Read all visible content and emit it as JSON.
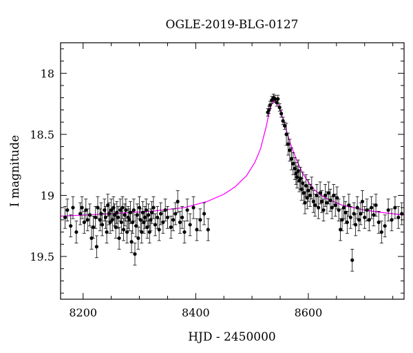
{
  "chart_data": {
    "type": "scatter",
    "title": "OGLE-2019-BLG-0127",
    "xlabel": "HJD - 2450000",
    "ylabel": "I magnitude",
    "xlim": [
      8160,
      8770
    ],
    "ylim": [
      19.85,
      17.75
    ],
    "y_inverted": true,
    "grid": false,
    "legend": "none",
    "x_ticks": [
      8200,
      8400,
      8600
    ],
    "y_ticks": [
      18,
      18.5,
      19,
      19.5
    ],
    "x_tick_labels": [
      "8200",
      "8400",
      "8600"
    ],
    "y_tick_labels": [
      "18",
      "18.5",
      "19",
      "19.5"
    ],
    "colors": {
      "data": "#000000",
      "model": "#ff00ff"
    },
    "model_curve": {
      "x": [
        8160,
        8250,
        8320,
        8380,
        8420,
        8450,
        8470,
        8490,
        8505,
        8515,
        8525,
        8530,
        8535,
        8540,
        8545,
        8550,
        8555,
        8560,
        8565,
        8570,
        8575,
        8580,
        8585,
        8590,
        8600,
        8610,
        8620,
        8630,
        8640,
        8650,
        8660,
        8680,
        8700,
        8730,
        8770
      ],
      "y": [
        19.17,
        19.15,
        19.13,
        19.1,
        19.05,
        18.99,
        18.93,
        18.84,
        18.73,
        18.62,
        18.44,
        18.33,
        18.25,
        18.22,
        18.24,
        18.3,
        18.37,
        18.45,
        18.53,
        18.6,
        18.66,
        18.72,
        18.77,
        18.82,
        18.89,
        18.95,
        18.99,
        19.02,
        19.04,
        19.06,
        19.08,
        19.1,
        19.12,
        19.14,
        19.16
      ]
    },
    "series": [
      {
        "x": [
          8168,
          8172,
          8178,
          8182,
          8188,
          8195,
          8198,
          8202,
          8205,
          8208,
          8212,
          8215,
          8218,
          8222,
          8224,
          8226,
          8230,
          8232,
          8234,
          8238,
          8240,
          8242,
          8244,
          8246,
          8248,
          8250,
          8252,
          8254,
          8256,
          8258,
          8260,
          8262,
          8264,
          8266,
          8268,
          8270,
          8272,
          8274,
          8276,
          8278,
          8280,
          8282,
          8284,
          8286,
          8288,
          8290,
          8292,
          8294,
          8296,
          8298,
          8300,
          8302,
          8304,
          8306,
          8308,
          8310,
          8312,
          8314,
          8316,
          8318,
          8320,
          8322,
          8325,
          8328,
          8332,
          8335,
          8338,
          8342,
          8346,
          8350,
          8356,
          8360,
          8364,
          8368,
          8372,
          8376,
          8380,
          8385,
          8390,
          8396,
          8402,
          8408,
          8415,
          8422
        ],
        "y": [
          19.18,
          19.12,
          19.25,
          19.1,
          19.3,
          19.15,
          19.1,
          19.22,
          19.12,
          19.2,
          19.16,
          19.35,
          19.26,
          19.18,
          19.42,
          19.1,
          19.2,
          19.15,
          19.24,
          19.12,
          19.18,
          19.3,
          19.08,
          19.15,
          19.22,
          19.12,
          19.2,
          19.1,
          19.16,
          19.26,
          19.14,
          19.18,
          19.35,
          19.12,
          19.22,
          19.1,
          19.28,
          19.16,
          19.12,
          19.3,
          19.18,
          19.2,
          19.14,
          19.38,
          19.22,
          19.12,
          19.48,
          19.25,
          19.16,
          19.35,
          19.1,
          19.2,
          19.3,
          19.14,
          19.22,
          19.18,
          19.12,
          19.26,
          19.16,
          19.3,
          19.2,
          19.14,
          19.1,
          19.24,
          19.18,
          19.28,
          19.15,
          19.22,
          19.12,
          19.18,
          19.26,
          19.2,
          19.15,
          19.05,
          19.22,
          19.18,
          19.3,
          19.12,
          19.24,
          19.1,
          19.28,
          19.2,
          19.15,
          19.28
        ]
      },
      {
        "x": [
          8528,
          8530,
          8532,
          8535,
          8538,
          8541,
          8544,
          8546,
          8549,
          8552,
          8555,
          8558,
          8561,
          8564,
          8567,
          8570,
          8573,
          8576,
          8578,
          8580,
          8582,
          8584,
          8586,
          8588,
          8590,
          8592,
          8594,
          8596,
          8598,
          8600,
          8603,
          8606,
          8609,
          8612,
          8615,
          8618,
          8621,
          8624,
          8627,
          8630,
          8633,
          8636,
          8639,
          8642,
          8645,
          8648,
          8651,
          8654,
          8657,
          8660,
          8663,
          8666,
          8669,
          8672,
          8675,
          8678,
          8681,
          8684,
          8687,
          8690,
          8693,
          8696,
          8700,
          8704,
          8708,
          8712,
          8716,
          8720,
          8725,
          8730,
          8736,
          8742,
          8748,
          8754,
          8760,
          8766
        ],
        "y": [
          18.32,
          18.3,
          18.26,
          18.22,
          18.2,
          18.21,
          18.24,
          18.21,
          18.28,
          18.33,
          18.39,
          18.43,
          18.5,
          18.58,
          18.63,
          18.7,
          18.74,
          18.78,
          18.82,
          18.85,
          18.8,
          18.88,
          18.86,
          18.95,
          18.9,
          18.98,
          19.06,
          18.92,
          19.02,
          18.96,
          19.0,
          18.94,
          19.05,
          19.08,
          19.0,
          19.1,
          18.98,
          19.05,
          19.12,
          19.0,
          19.06,
          18.98,
          19.04,
          19.1,
          19.0,
          19.08,
          19.02,
          19.12,
          19.28,
          19.2,
          19.1,
          19.14,
          19.22,
          19.08,
          19.18,
          19.53,
          19.15,
          19.24,
          19.1,
          19.2,
          19.15,
          19.05,
          19.18,
          19.12,
          19.2,
          19.1,
          19.16,
          19.08,
          19.22,
          19.3,
          19.25,
          19.12,
          19.2,
          19.1,
          19.18,
          19.15
        ]
      }
    ]
  }
}
